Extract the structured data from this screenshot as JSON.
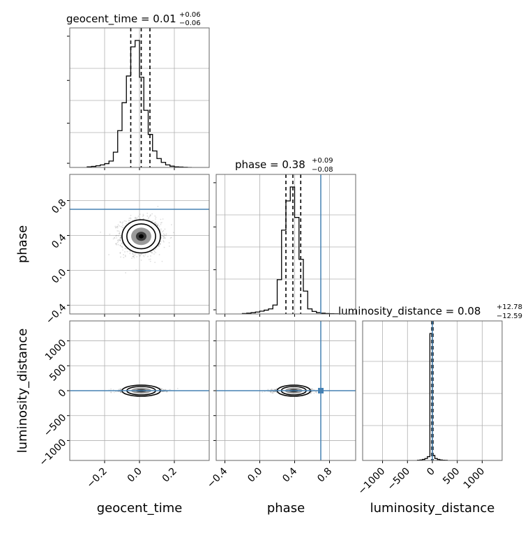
{
  "chart_data": {
    "type": "corner",
    "colors": {
      "truth": "#4682b4",
      "hist": "#000000",
      "points": "#000000",
      "grid": "#b0b0b0"
    },
    "params": [
      "geocent_time",
      "phase",
      "luminosity_distance"
    ],
    "axis_labels": {
      "geocent_time": "geocent_time",
      "phase": "phase",
      "luminosity_distance": "luminosity_distance"
    },
    "truths": {
      "phase": 0.7,
      "luminosity_distance": 0
    },
    "ranges": {
      "geocent_time": [
        -0.4,
        0.4
      ],
      "phase": [
        -0.5,
        1.1
      ],
      "luminosity_distance": [
        -1400,
        1400
      ]
    },
    "ticks": {
      "geocent_time": [
        -0.2,
        0.0,
        0.2
      ],
      "phase": [
        -0.4,
        0.0,
        0.4,
        0.8
      ],
      "luminosity_distance": [
        -1000,
        -500,
        0,
        500,
        1000
      ]
    },
    "tick_labels": {
      "geocent_time": [
        "−0.2",
        "0.0",
        "0.2"
      ],
      "phase": [
        "−0.4",
        "0.0",
        "0.4",
        "0.8"
      ],
      "luminosity_distance": [
        "−1000",
        "−500",
        "0",
        "500",
        "1000"
      ]
    },
    "stats": {
      "geocent_time": {
        "name": "geocent_time",
        "median": "0.01",
        "plus": "+0.06",
        "minus": "−0.06",
        "q16": -0.05,
        "q50": 0.01,
        "q84": 0.06
      },
      "phase": {
        "name": "phase",
        "median": "0.38",
        "plus": "+0.09",
        "minus": "−0.08",
        "q16": 0.3,
        "q50": 0.38,
        "q84": 0.47
      },
      "luminosity_distance": {
        "name": "luminosity_distance",
        "median": "0.08",
        "plus": "+12.78",
        "minus": "−12.59",
        "q16": -12.5,
        "q50": 0.08,
        "q84": 12.9
      }
    },
    "histograms": {
      "geocent_time": {
        "edges": [
          -0.3,
          -0.275,
          -0.25,
          -0.225,
          -0.2,
          -0.175,
          -0.15,
          -0.125,
          -0.1,
          -0.075,
          -0.05,
          -0.025,
          0.0,
          0.025,
          0.05,
          0.075,
          0.1,
          0.125,
          0.15,
          0.175,
          0.2,
          0.225,
          0.25,
          0.275,
          0.3
        ],
        "counts": [
          0.005,
          0.008,
          0.013,
          0.02,
          0.03,
          0.05,
          0.12,
          0.29,
          0.51,
          0.72,
          0.95,
          1.0,
          0.71,
          0.45,
          0.26,
          0.13,
          0.07,
          0.04,
          0.02,
          0.01,
          0.005,
          0.003,
          0.001,
          0.0
        ]
      },
      "phase": {
        "edges": [
          -0.2,
          -0.15,
          -0.1,
          -0.05,
          0.0,
          0.05,
          0.1,
          0.15,
          0.2,
          0.25,
          0.3,
          0.35,
          0.4,
          0.45,
          0.5,
          0.55,
          0.6,
          0.65,
          0.7,
          0.75,
          0.8,
          0.85,
          0.9,
          0.95
        ],
        "counts": [
          0.003,
          0.006,
          0.01,
          0.015,
          0.022,
          0.03,
          0.04,
          0.07,
          0.27,
          0.66,
          0.89,
          1.0,
          0.76,
          0.43,
          0.18,
          0.04,
          0.02,
          0.01,
          0.006,
          0.003,
          0.002,
          0.001,
          0.0
        ]
      },
      "luminosity_distance": {
        "edges": [
          -300,
          -250,
          -200,
          -150,
          -100,
          -50,
          0,
          50,
          100,
          150,
          200,
          250,
          300
        ],
        "counts": [
          0.002,
          0.004,
          0.008,
          0.015,
          0.03,
          1.0,
          0.04,
          0.015,
          0.008,
          0.004,
          0.002,
          0.001
        ]
      }
    },
    "posterior": {
      "geocent_time": {
        "mean": 0.01,
        "sd": 0.055
      },
      "phase": {
        "mean": 0.39,
        "sd": 0.095
      },
      "luminosity_distance": {
        "mean": 0,
        "sd": 12.5
      }
    }
  }
}
